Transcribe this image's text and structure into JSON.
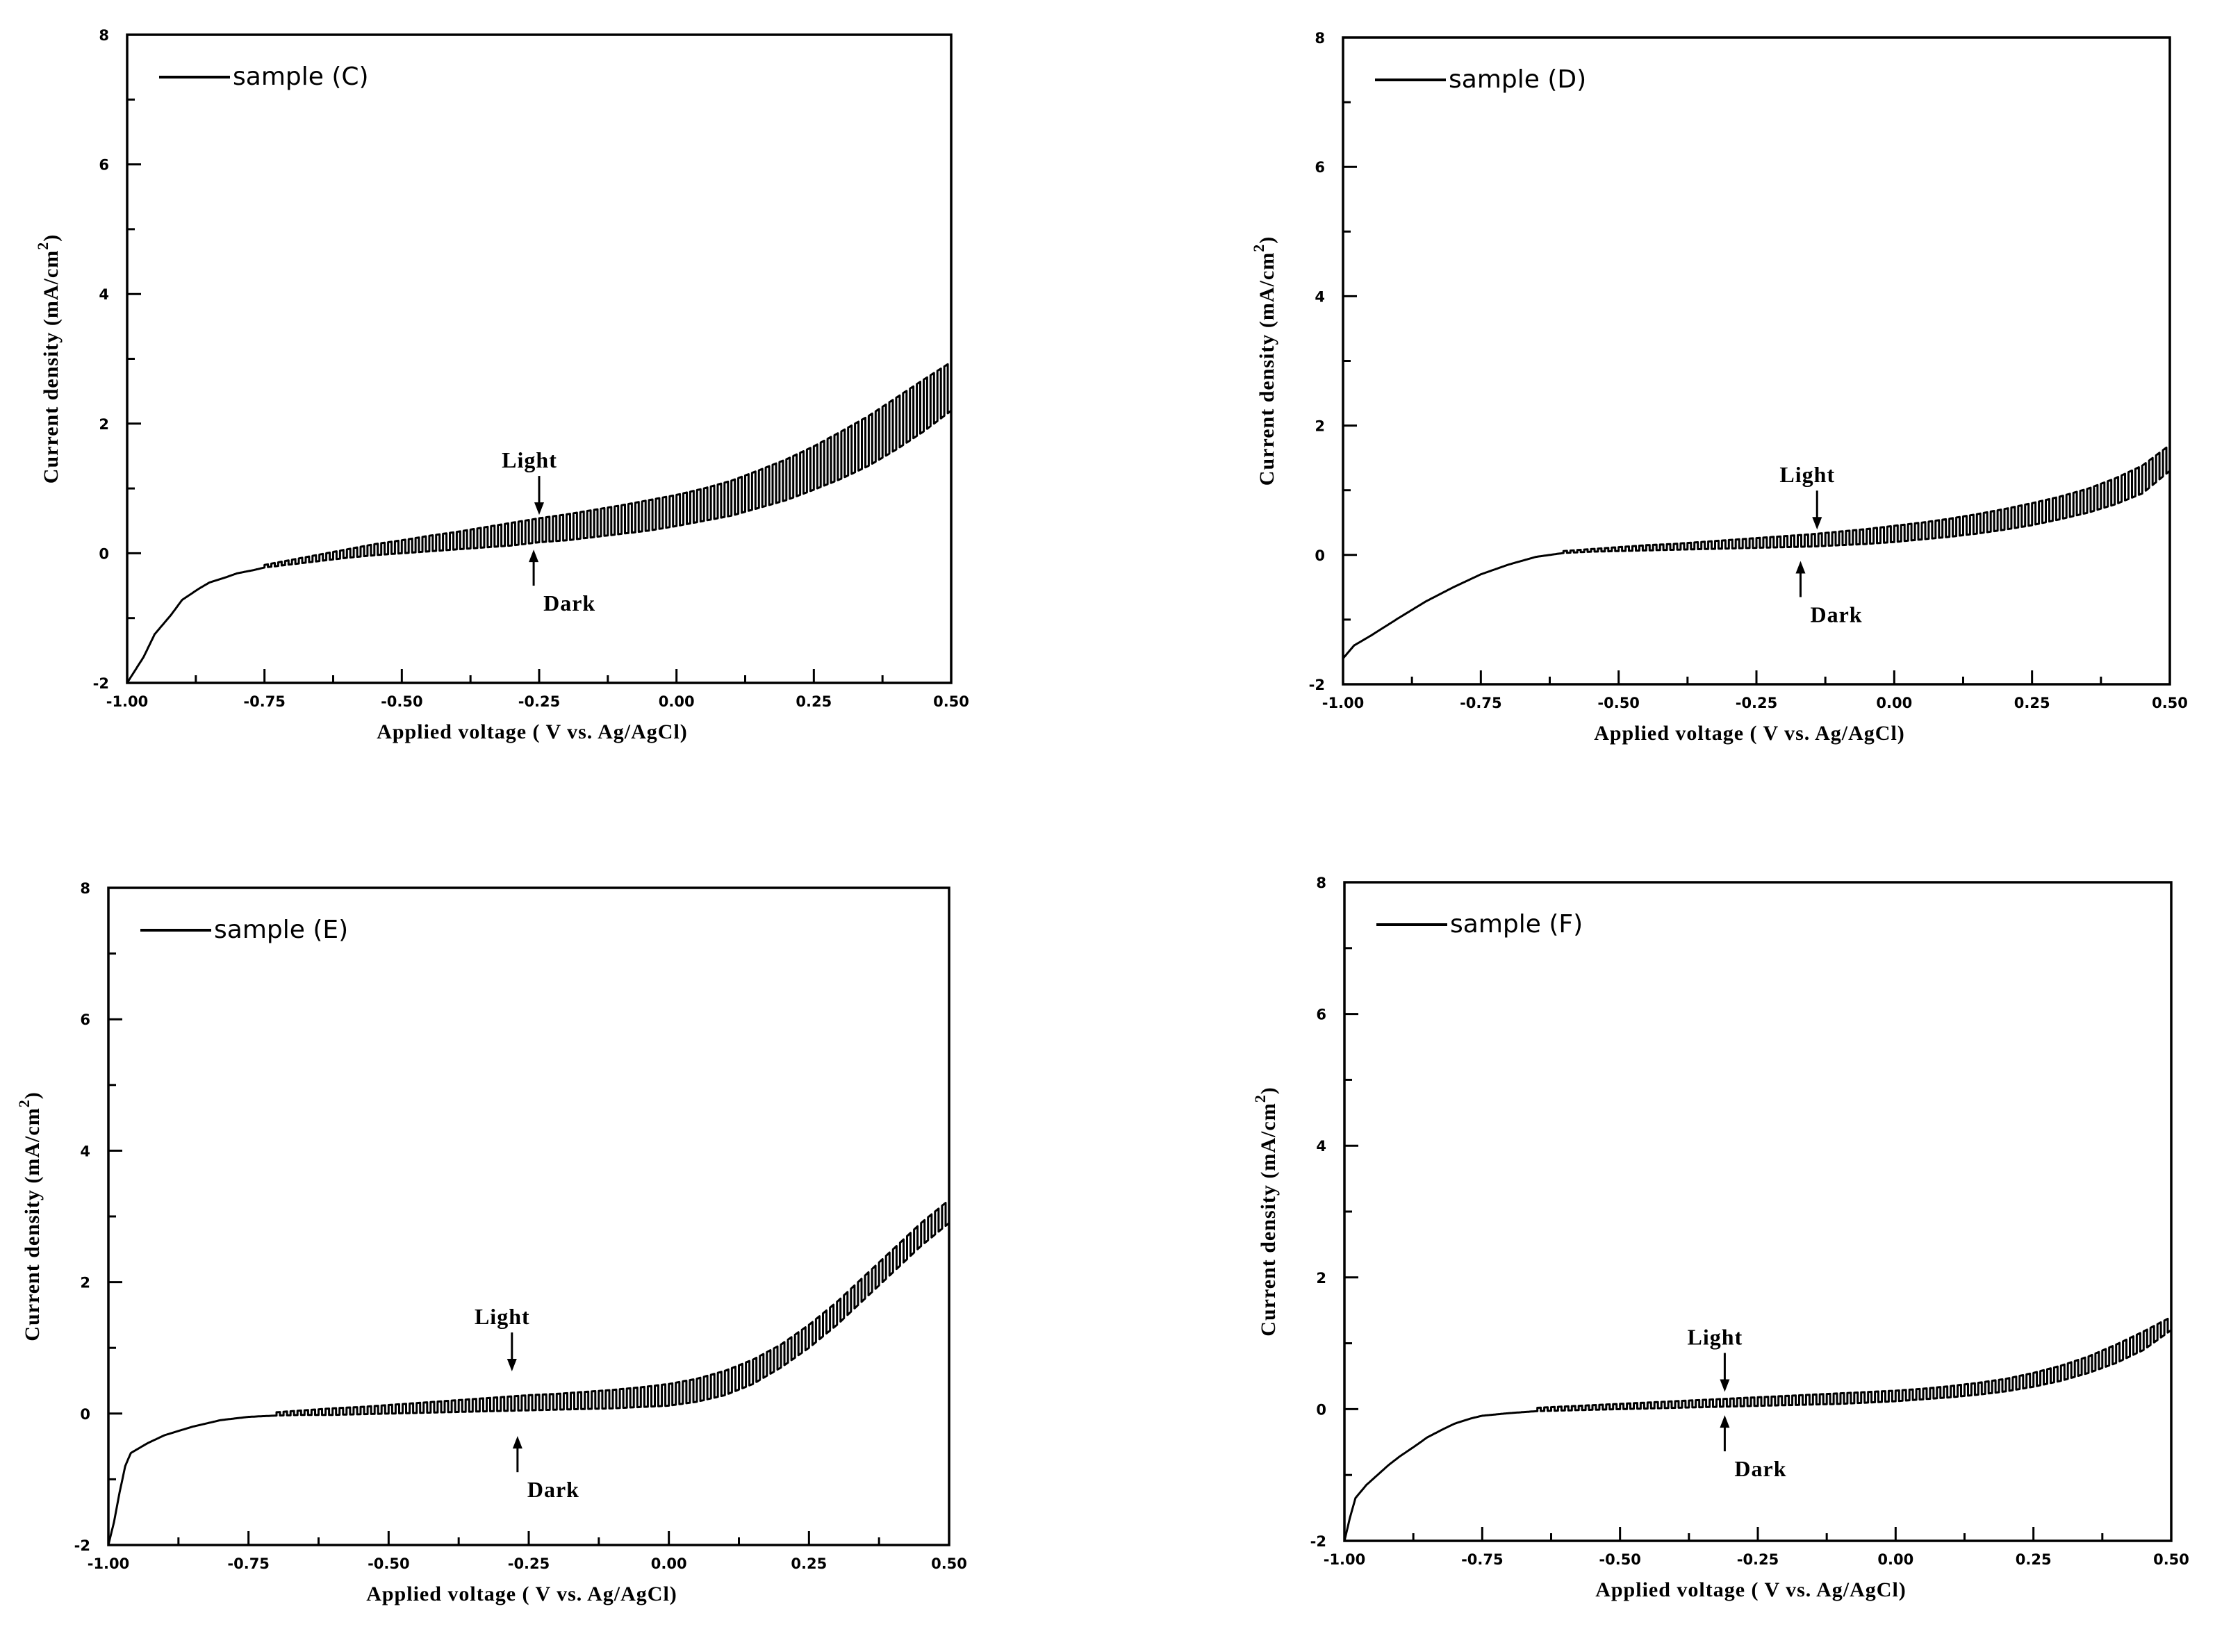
{
  "chart_data": [
    {
      "type": "line",
      "title": "",
      "xlabel": "Applied voltage ( V vs. Ag/AgCl)",
      "ylabel": "Current density (mA/cm2)",
      "ylabel_main": "Current density (mA/cm",
      "ylabel_sup": "2",
      "ylabel_close": ")",
      "xlim": [
        -1.0,
        0.5
      ],
      "ylim": [
        -2,
        8
      ],
      "xticks": [
        -1.0,
        -0.75,
        -0.5,
        -0.25,
        0.0,
        0.25,
        0.5
      ],
      "xtick_labels": [
        "-1.00",
        "-0.75",
        "-0.50",
        "-0.25",
        "0.00",
        "0.25",
        "0.50"
      ],
      "yticks": [
        -2,
        0,
        2,
        4,
        6,
        8
      ],
      "ytick_labels": [
        "-2",
        "0",
        "2",
        "4",
        "6",
        "8"
      ],
      "legend": "sample (C)",
      "legend_position": "top-left",
      "annotations": {
        "light": "Light",
        "dark": "Dark",
        "light_x": -0.25,
        "light_y": 0.55,
        "dark_x": -0.26,
        "dark_y": 0.1
      },
      "chop_start": -0.75,
      "chop_period": 0.0125,
      "series": [
        {
          "name": "Dark",
          "x": [
            -1.0,
            -0.97,
            -0.95,
            -0.92,
            -0.9,
            -0.87,
            -0.85,
            -0.82,
            -0.8,
            -0.77,
            -0.75,
            -0.7,
            -0.65,
            -0.6,
            -0.55,
            -0.5,
            -0.45,
            -0.4,
            -0.35,
            -0.3,
            -0.25,
            -0.2,
            -0.15,
            -0.1,
            -0.05,
            0.0,
            0.05,
            0.1,
            0.15,
            0.2,
            0.25,
            0.3,
            0.35,
            0.4,
            0.45,
            0.5
          ],
          "y": [
            -2.0,
            -1.6,
            -1.25,
            -0.95,
            -0.72,
            -0.55,
            -0.45,
            -0.37,
            -0.31,
            -0.26,
            -0.22,
            -0.17,
            -0.12,
            -0.07,
            -0.03,
            0.0,
            0.03,
            0.06,
            0.09,
            0.12,
            0.17,
            0.2,
            0.25,
            0.3,
            0.35,
            0.42,
            0.5,
            0.58,
            0.7,
            0.82,
            0.98,
            1.15,
            1.35,
            1.6,
            1.88,
            2.2
          ]
        },
        {
          "name": "Light",
          "x": [
            -0.75,
            -0.7,
            -0.65,
            -0.6,
            -0.55,
            -0.5,
            -0.45,
            -0.4,
            -0.35,
            -0.3,
            -0.25,
            -0.2,
            -0.15,
            -0.1,
            -0.05,
            0.0,
            0.05,
            0.1,
            0.15,
            0.2,
            0.25,
            0.3,
            0.35,
            0.4,
            0.45,
            0.5
          ],
          "y": [
            -0.18,
            -0.1,
            -0.02,
            0.06,
            0.14,
            0.2,
            0.27,
            0.33,
            0.4,
            0.47,
            0.54,
            0.6,
            0.67,
            0.74,
            0.82,
            0.9,
            1.0,
            1.12,
            1.28,
            1.45,
            1.65,
            1.88,
            2.12,
            2.4,
            2.68,
            2.95
          ]
        }
      ]
    },
    {
      "type": "line",
      "title": "",
      "xlabel": "Applied voltage ( V vs. Ag/AgCl)",
      "ylabel": "Current density (mA/cm2)",
      "ylabel_main": "Current density (mA/cm",
      "ylabel_sup": "2",
      "ylabel_close": ")",
      "xlim": [
        -1.0,
        0.5
      ],
      "ylim": [
        -2,
        8
      ],
      "xticks": [
        -1.0,
        -0.75,
        -0.5,
        -0.25,
        0.0,
        0.25,
        0.5
      ],
      "xtick_labels": [
        "-1.00",
        "-0.75",
        "-0.50",
        "-0.25",
        "0.00",
        "0.25",
        "0.50"
      ],
      "yticks": [
        -2,
        0,
        2,
        4,
        6,
        8
      ],
      "ytick_labels": [
        "-2",
        "0",
        "2",
        "4",
        "6",
        "8"
      ],
      "legend": "sample (D)",
      "legend_position": "top-left",
      "annotations": {
        "light": "Light",
        "dark": "Dark",
        "light_x": -0.14,
        "light_y": 0.35,
        "dark_x": -0.17,
        "dark_y": -0.05
      },
      "chop_start": -0.6,
      "chop_period": 0.0125,
      "series": [
        {
          "name": "Dark",
          "x": [
            -1.0,
            -0.98,
            -0.95,
            -0.9,
            -0.85,
            -0.8,
            -0.75,
            -0.7,
            -0.65,
            -0.6,
            -0.55,
            -0.5,
            -0.45,
            -0.4,
            -0.35,
            -0.3,
            -0.25,
            -0.2,
            -0.15,
            -0.1,
            -0.05,
            0.0,
            0.05,
            0.1,
            0.15,
            0.2,
            0.25,
            0.3,
            0.35,
            0.4,
            0.45,
            0.5
          ],
          "y": [
            -1.6,
            -1.4,
            -1.25,
            -0.98,
            -0.72,
            -0.5,
            -0.3,
            -0.15,
            -0.03,
            0.03,
            0.05,
            0.06,
            0.07,
            0.08,
            0.09,
            0.1,
            0.11,
            0.12,
            0.13,
            0.15,
            0.17,
            0.2,
            0.24,
            0.28,
            0.33,
            0.39,
            0.46,
            0.55,
            0.65,
            0.78,
            0.95,
            1.3
          ]
        },
        {
          "name": "Light",
          "x": [
            -0.6,
            -0.55,
            -0.5,
            -0.45,
            -0.4,
            -0.35,
            -0.3,
            -0.25,
            -0.2,
            -0.15,
            -0.1,
            -0.05,
            0.0,
            0.05,
            0.1,
            0.15,
            0.2,
            0.25,
            0.3,
            0.35,
            0.4,
            0.45,
            0.5
          ],
          "y": [
            0.06,
            0.09,
            0.12,
            0.15,
            0.17,
            0.2,
            0.23,
            0.26,
            0.29,
            0.32,
            0.36,
            0.4,
            0.45,
            0.5,
            0.56,
            0.63,
            0.71,
            0.8,
            0.9,
            1.02,
            1.18,
            1.38,
            1.7
          ]
        }
      ]
    },
    {
      "type": "line",
      "title": "",
      "xlabel": "Applied voltage ( V vs. Ag/AgCl)",
      "ylabel": "Current density (mA/cm2)",
      "ylabel_main": "Current density (mA/cm",
      "ylabel_sup": "2",
      "ylabel_close": ")",
      "xlim": [
        -1.0,
        0.5
      ],
      "ylim": [
        -2,
        8
      ],
      "xticks": [
        -1.0,
        -0.75,
        -0.5,
        -0.25,
        0.0,
        0.25,
        0.5
      ],
      "xtick_labels": [
        "-1.00",
        "-0.75",
        "-0.50",
        "-0.25",
        "0.00",
        "0.25",
        "0.50"
      ],
      "yticks": [
        -2,
        0,
        2,
        4,
        6,
        8
      ],
      "ytick_labels": [
        "-2",
        "0",
        "2",
        "4",
        "6",
        "8"
      ],
      "legend": "sample (E)",
      "legend_position": "top-left",
      "annotations": {
        "light": "Light",
        "dark": "Dark",
        "light_x": -0.28,
        "light_y": 0.6,
        "dark_x": -0.27,
        "dark_y": -0.3
      },
      "chop_start": -0.7,
      "chop_period": 0.0125,
      "series": [
        {
          "name": "Dark",
          "x": [
            -1.0,
            -0.99,
            -0.98,
            -0.97,
            -0.96,
            -0.93,
            -0.9,
            -0.85,
            -0.8,
            -0.75,
            -0.7,
            -0.65,
            -0.6,
            -0.55,
            -0.5,
            -0.45,
            -0.4,
            -0.35,
            -0.3,
            -0.25,
            -0.2,
            -0.15,
            -0.1,
            -0.05,
            0.0,
            0.05,
            0.1,
            0.15,
            0.2,
            0.25,
            0.3,
            0.35,
            0.4,
            0.45,
            0.5
          ],
          "y": [
            -2.0,
            -1.65,
            -1.2,
            -0.8,
            -0.6,
            -0.45,
            -0.33,
            -0.2,
            -0.1,
            -0.05,
            -0.03,
            -0.02,
            -0.02,
            -0.01,
            0.0,
            0.01,
            0.02,
            0.03,
            0.04,
            0.05,
            0.06,
            0.07,
            0.08,
            0.1,
            0.12,
            0.18,
            0.28,
            0.45,
            0.7,
            1.0,
            1.35,
            1.75,
            2.15,
            2.55,
            2.9
          ]
        },
        {
          "name": "Light",
          "x": [
            -0.7,
            -0.65,
            -0.6,
            -0.55,
            -0.5,
            -0.45,
            -0.4,
            -0.35,
            -0.3,
            -0.25,
            -0.2,
            -0.15,
            -0.1,
            -0.05,
            0.0,
            0.05,
            0.1,
            0.15,
            0.2,
            0.25,
            0.3,
            0.35,
            0.4,
            0.45,
            0.5
          ],
          "y": [
            0.02,
            0.05,
            0.08,
            0.1,
            0.13,
            0.16,
            0.19,
            0.22,
            0.25,
            0.28,
            0.3,
            0.33,
            0.36,
            0.4,
            0.45,
            0.53,
            0.65,
            0.82,
            1.05,
            1.35,
            1.7,
            2.1,
            2.5,
            2.9,
            3.25
          ]
        }
      ]
    },
    {
      "type": "line",
      "title": "",
      "xlabel": "Applied voltage ( V vs. Ag/AgCl)",
      "ylabel": "Current density (mA/cm2)",
      "ylabel_main": "Current density (mA/cm",
      "ylabel_sup": "2",
      "ylabel_close": ")",
      "xlim": [
        -1.0,
        0.5
      ],
      "ylim": [
        -2,
        8
      ],
      "xticks": [
        -1.0,
        -0.75,
        -0.5,
        -0.25,
        0.0,
        0.25,
        0.5
      ],
      "xtick_labels": [
        "-1.00",
        "-0.75",
        "-0.50",
        "-0.25",
        "0.00",
        "0.25",
        "0.50"
      ],
      "yticks": [
        -2,
        0,
        2,
        4,
        6,
        8
      ],
      "ytick_labels": [
        "-2",
        "0",
        "2",
        "4",
        "6",
        "8"
      ],
      "legend": "sample (F)",
      "legend_position": "top-left",
      "annotations": {
        "light": "Light",
        "dark": "Dark",
        "light_x": -0.31,
        "light_y": 0.22,
        "dark_x": -0.31,
        "dark_y": -0.05
      },
      "chop_start": -0.65,
      "chop_period": 0.0125,
      "series": [
        {
          "name": "Dark",
          "x": [
            -1.0,
            -0.99,
            -0.98,
            -0.96,
            -0.94,
            -0.92,
            -0.9,
            -0.87,
            -0.85,
            -0.82,
            -0.8,
            -0.77,
            -0.75,
            -0.7,
            -0.65,
            -0.6,
            -0.55,
            -0.5,
            -0.45,
            -0.4,
            -0.35,
            -0.3,
            -0.25,
            -0.2,
            -0.15,
            -0.1,
            -0.05,
            0.0,
            0.05,
            0.1,
            0.15,
            0.2,
            0.25,
            0.3,
            0.35,
            0.4,
            0.45,
            0.5
          ],
          "y": [
            -2.0,
            -1.65,
            -1.35,
            -1.15,
            -1.0,
            -0.85,
            -0.72,
            -0.55,
            -0.43,
            -0.3,
            -0.22,
            -0.14,
            -0.1,
            -0.06,
            -0.03,
            -0.02,
            -0.01,
            0.0,
            0.01,
            0.02,
            0.03,
            0.04,
            0.05,
            0.06,
            0.07,
            0.08,
            0.1,
            0.12,
            0.15,
            0.18,
            0.22,
            0.27,
            0.34,
            0.43,
            0.55,
            0.7,
            0.9,
            1.2
          ]
        },
        {
          "name": "Light",
          "x": [
            -0.65,
            -0.6,
            -0.55,
            -0.5,
            -0.45,
            -0.4,
            -0.35,
            -0.3,
            -0.25,
            -0.2,
            -0.15,
            -0.1,
            -0.05,
            0.0,
            0.05,
            0.1,
            0.15,
            0.2,
            0.25,
            0.3,
            0.35,
            0.4,
            0.45,
            0.5
          ],
          "y": [
            0.02,
            0.04,
            0.06,
            0.08,
            0.1,
            0.12,
            0.14,
            0.16,
            0.18,
            0.2,
            0.22,
            0.24,
            0.26,
            0.28,
            0.31,
            0.35,
            0.4,
            0.46,
            0.55,
            0.66,
            0.8,
            0.98,
            1.18,
            1.4
          ]
        }
      ]
    }
  ]
}
